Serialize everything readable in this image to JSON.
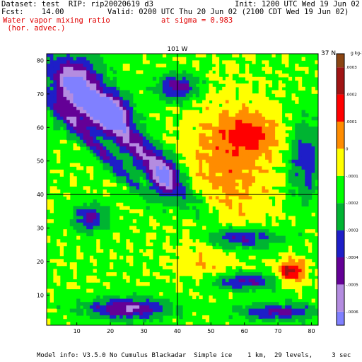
{
  "header": {
    "dataset": "Dataset: test  RIP: rip20020619 d3",
    "init": "Init: 1200 UTC Wed 19 Jun 02",
    "fcst": "Fcst:    14.00",
    "valid": "Valid: 0200 UTC Thu 20 Jun 02 (2100 CDT Wed 19 Jun 02)",
    "field_line1": "Water vapor mixing ratio",
    "field_line2": " (hor. advec.)",
    "level": "at sigma = 0.983"
  },
  "footer": {
    "model_info": "Model info: V3.5.0 No Cumulus Blackadar  Simple ice    1 km,  29 levels,     3 sec"
  },
  "chart_data": {
    "type": "heatmap",
    "x_ticks": [
      10,
      20,
      30,
      40,
      50,
      60,
      70,
      80
    ],
    "y_ticks": [
      10,
      20,
      30,
      40,
      50,
      60,
      70,
      80
    ],
    "xlim": [
      1,
      82
    ],
    "ylim": [
      1,
      82
    ],
    "reference_lines": [
      {
        "orientation": "vertical",
        "at": 40,
        "label": "101 W"
      },
      {
        "orientation": "horizontal",
        "at": 40,
        "label": "37 N"
      }
    ],
    "colorbar": {
      "unit": "g kg-1",
      "tick_labels": [
        "-.0006",
        "-.0005",
        "-.0004",
        "-.0003",
        "-.0002",
        "-.0001",
        "0",
        ".0001",
        ".0002",
        ".0003"
      ],
      "levels": [
        {
          "min": -0.00065,
          "max": -0.0006,
          "color": "#8080ff"
        },
        {
          "min": -0.0006,
          "max": -0.0005,
          "color": "#b48ce0"
        },
        {
          "min": -0.0005,
          "max": -0.0004,
          "color": "#640096"
        },
        {
          "min": -0.0004,
          "max": -0.0003,
          "color": "#1e1ec8"
        },
        {
          "min": -0.0003,
          "max": -0.0002,
          "color": "#00b432"
        },
        {
          "min": -0.0002,
          "max": -0.0001,
          "color": "#00ff00"
        },
        {
          "min": -0.0001,
          "max": 0.0,
          "color": "#ffff00"
        },
        {
          "min": 0.0,
          "max": 0.0001,
          "color": "#ff8c00"
        },
        {
          "min": 0.0001,
          "max": 0.0002,
          "color": "#ff0000"
        },
        {
          "min": 0.0002,
          "max": 0.0003,
          "color": "#a01414"
        },
        {
          "min": 0.0003,
          "max": 0.00035,
          "color": "#8b4513"
        }
      ]
    }
  }
}
